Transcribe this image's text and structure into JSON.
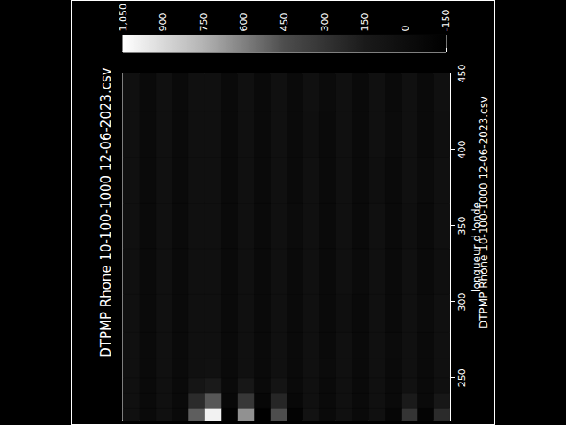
{
  "chart_data": {
    "type": "contour",
    "title": "DTPMP Rhone 10-100-1000 12-06-2023.csv",
    "subtitle": "DTPMP Rhone 10-100-1000 12-06-2023.csv",
    "x_label": "longueur d 'onde",
    "x": [
      225,
      235,
      245,
      255,
      270,
      290,
      320,
      350,
      380,
      410,
      440
    ],
    "y": [
      2.5,
      7.5,
      12.5,
      17.5,
      22.5,
      27.5,
      32.5,
      37.5,
      42.5,
      47.5,
      52.5,
      57.5,
      62.5,
      67.5,
      72.5,
      77.5,
      82.5,
      87.5,
      92.5,
      97.5
    ],
    "z": [
      [
        250,
        120,
        40,
        35,
        30,
        30,
        28,
        30,
        30,
        28,
        30
      ],
      [
        -100,
        -40,
        -30,
        -30,
        -30,
        -28,
        -30,
        -30,
        -28,
        -30,
        -30
      ],
      [
        300,
        150,
        50,
        35,
        30,
        30,
        30,
        28,
        30,
        30,
        30
      ],
      [
        -80,
        -40,
        -30,
        -30,
        -28,
        -30,
        -30,
        -30,
        -30,
        -28,
        -30
      ],
      [
        40,
        35,
        30,
        30,
        30,
        30,
        30,
        30,
        28,
        30,
        30
      ],
      [
        -40,
        -30,
        -30,
        -30,
        -30,
        -30,
        -28,
        -30,
        -30,
        -30,
        -30
      ],
      [
        40,
        35,
        30,
        30,
        30,
        28,
        30,
        30,
        30,
        30,
        30
      ],
      [
        -40,
        -30,
        -30,
        -28,
        -30,
        -30,
        -30,
        -30,
        -30,
        -30,
        -28
      ],
      [
        60,
        40,
        30,
        30,
        30,
        30,
        30,
        30,
        30,
        28,
        30
      ],
      [
        -120,
        -60,
        -30,
        -30,
        -30,
        -30,
        -30,
        -28,
        -30,
        -30,
        -30
      ],
      [
        450,
        220,
        80,
        35,
        30,
        30,
        30,
        30,
        30,
        30,
        30
      ],
      [
        -150,
        -70,
        -35,
        -30,
        -30,
        -30,
        -30,
        -30,
        -30,
        -30,
        -30
      ],
      [
        650,
        320,
        110,
        40,
        30,
        30,
        30,
        30,
        30,
        30,
        30
      ],
      [
        -130,
        -60,
        -30,
        -30,
        -30,
        -30,
        -30,
        -30,
        -30,
        -30,
        -30
      ],
      [
        1000,
        480,
        150,
        45,
        30,
        30,
        30,
        30,
        30,
        30,
        30
      ],
      [
        500,
        250,
        90,
        40,
        30,
        30,
        30,
        30,
        30,
        30,
        30
      ],
      [
        -40,
        -30,
        -30,
        -30,
        -30,
        -30,
        -30,
        -30,
        -30,
        -30,
        -30
      ],
      [
        30,
        30,
        30,
        30,
        30,
        30,
        30,
        30,
        30,
        30,
        30
      ],
      [
        -30,
        -30,
        -30,
        -30,
        -30,
        -30,
        -30,
        -30,
        -30,
        -30,
        -30
      ],
      [
        30,
        30,
        30,
        30,
        30,
        30,
        30,
        30,
        30,
        30,
        30
      ]
    ],
    "xlim": [
      222,
      450
    ],
    "xticks": [
      250,
      300,
      350,
      400,
      450
    ],
    "ylim": [
      0,
      100
    ],
    "tick_labels": "x",
    "colorbar": {
      "range": [
        -150,
        1050
      ],
      "ticks": [
        -150,
        0,
        150,
        300,
        450,
        600,
        750,
        900,
        1050
      ]
    }
  }
}
